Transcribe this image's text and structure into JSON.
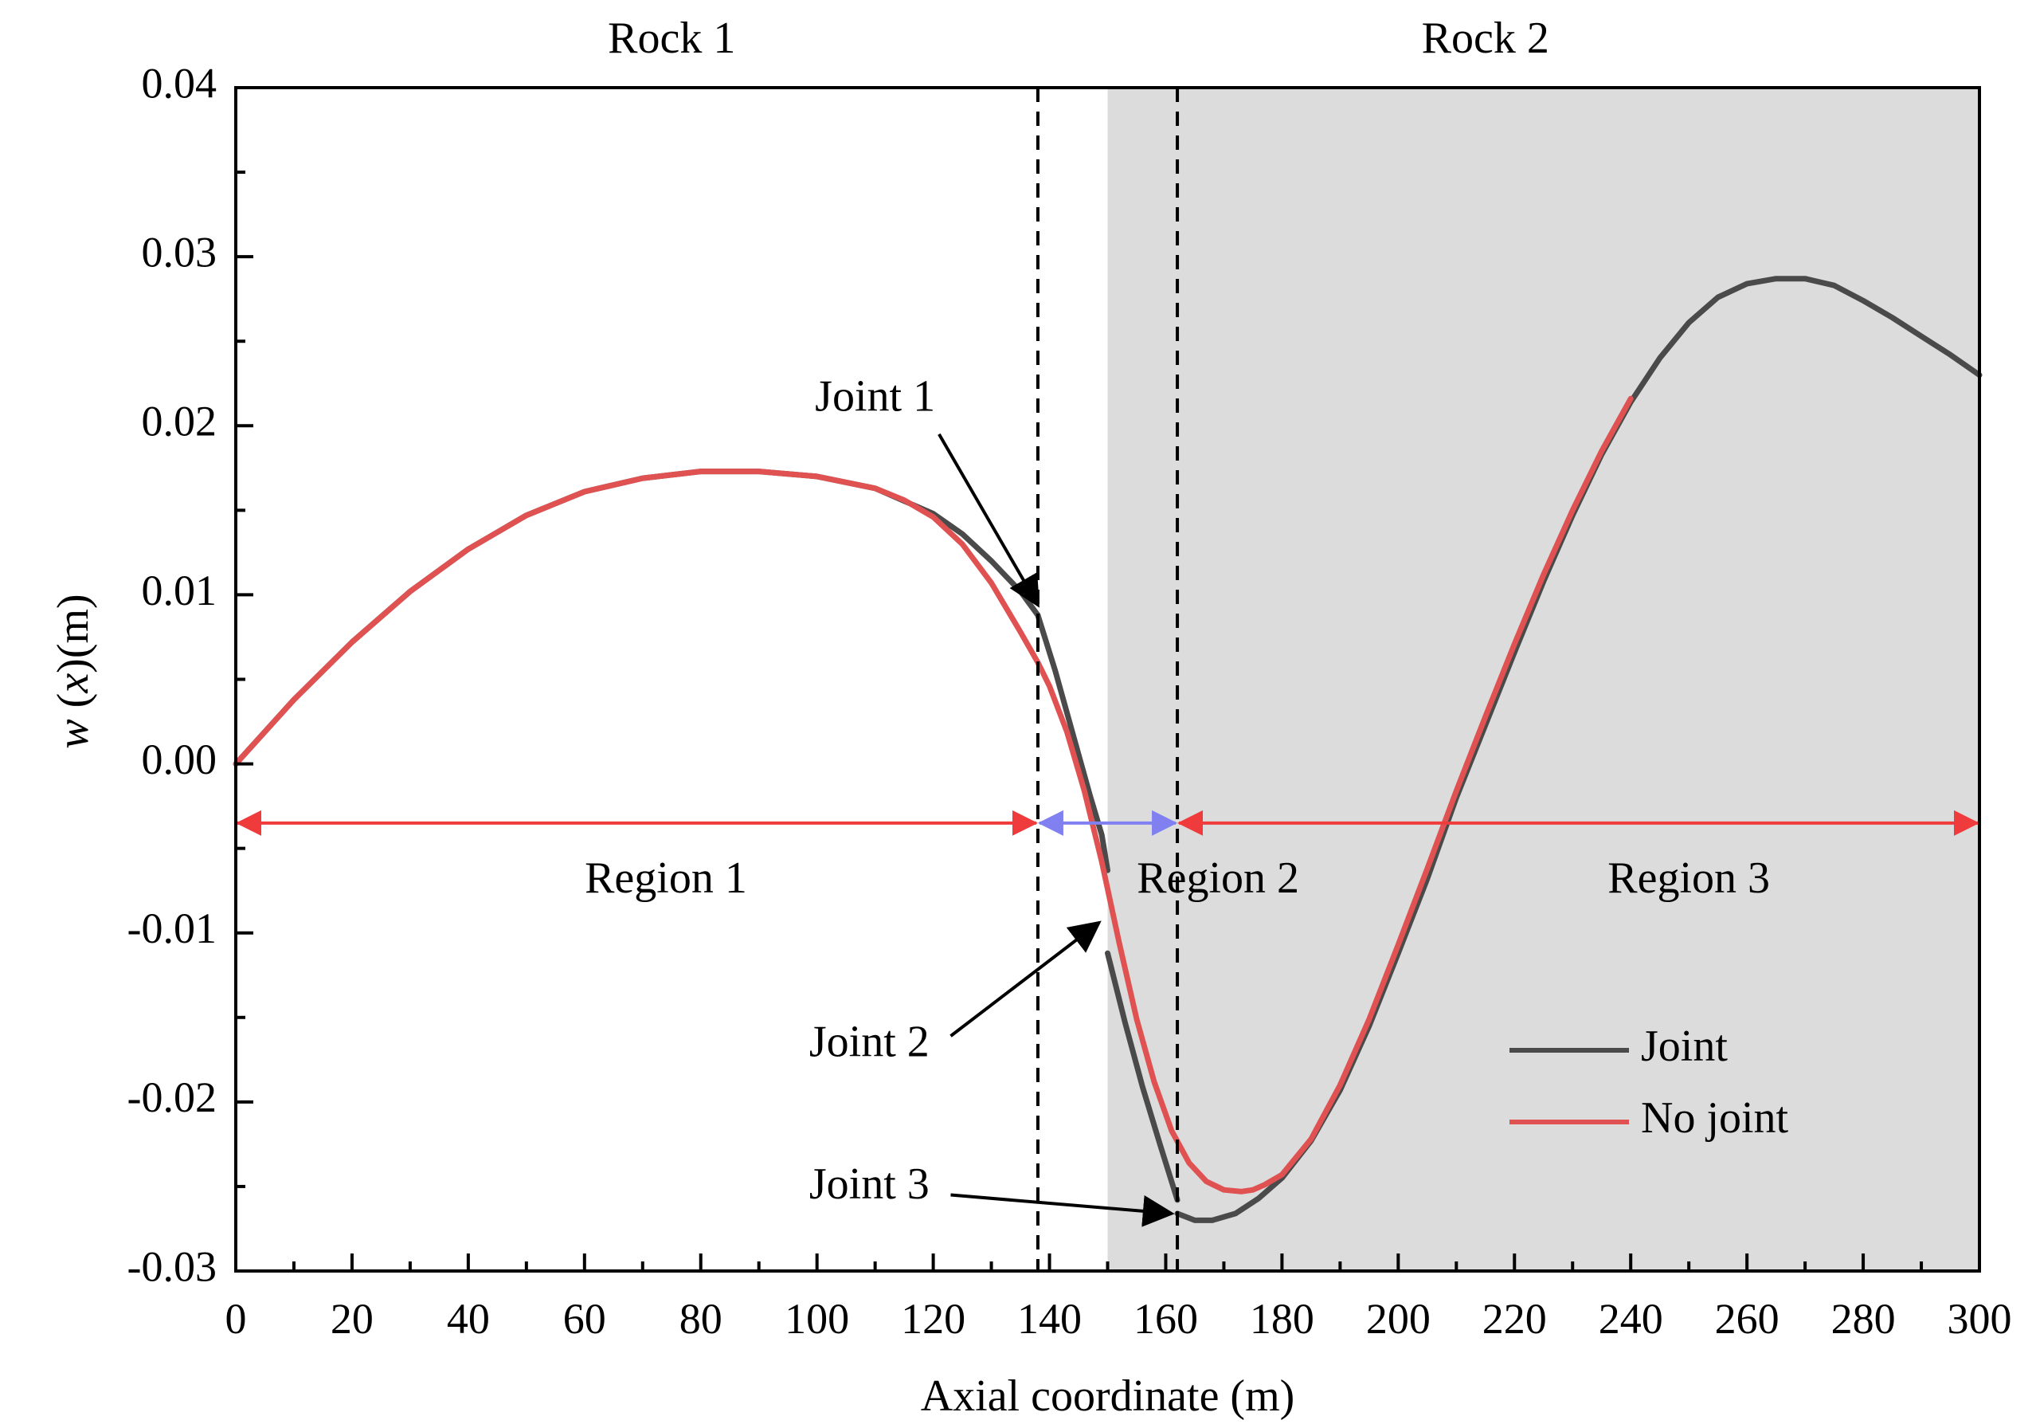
{
  "chart_data": {
    "type": "line",
    "title": "",
    "xlabel": "Axial coordinate (m)",
    "ylabel": "w (x)(m)",
    "ylabel_parts": {
      "w": "w",
      "open": " (",
      "x": "x",
      "close": ")(m)"
    },
    "xlim": [
      0,
      300
    ],
    "ylim": [
      -0.03,
      0.04
    ],
    "xticks": [
      0,
      20,
      40,
      60,
      80,
      100,
      120,
      140,
      160,
      180,
      200,
      220,
      240,
      260,
      280,
      300
    ],
    "xtick_labels": [
      "0",
      "20",
      "40",
      "60",
      "80",
      "100",
      "120",
      "140",
      "160",
      "180",
      "200",
      "220",
      "240",
      "260",
      "280",
      "300"
    ],
    "yticks": [
      -0.03,
      -0.02,
      -0.01,
      0.0,
      0.01,
      0.02,
      0.03,
      0.04
    ],
    "ytick_labels": [
      "-0.03",
      "-0.02",
      "-0.01",
      "0.00",
      "0.01",
      "0.02",
      "0.03",
      "0.04"
    ],
    "grid": false,
    "legend_position": "bottom-right",
    "shaded_region": {
      "x_from": 150,
      "x_to": 300,
      "color": "#dcdcdc"
    },
    "vertical_lines": [
      138,
      162
    ],
    "rock_labels": [
      {
        "text": "Rock 1",
        "x": 75
      },
      {
        "text": "Rock 2",
        "x": 215
      }
    ],
    "region_arrows": [
      {
        "x_from": 0,
        "x_to": 138,
        "y": -0.0035,
        "color": "#ef3b3b"
      },
      {
        "x_from": 138,
        "x_to": 162,
        "y": -0.0035,
        "color": "#8080f0"
      },
      {
        "x_from": 162,
        "x_to": 300,
        "y": -0.0035,
        "color": "#ef3b3b"
      }
    ],
    "region_labels": [
      {
        "text": "Region 1",
        "x": 74,
        "y": -0.007
      },
      {
        "text": "Region 2",
        "x": 169,
        "y": -0.007
      },
      {
        "text": "Region 3",
        "x": 250,
        "y": -0.007
      }
    ],
    "annotations": [
      {
        "text": "Joint 1",
        "text_x": 110,
        "text_y": 0.0215,
        "arrow_from": [
          121,
          0.0195
        ],
        "arrow_to": [
          138,
          0.0094
        ]
      },
      {
        "text": "Joint 2",
        "text_x": 109,
        "text_y": -0.0167,
        "arrow_from": [
          123,
          -0.0161
        ],
        "arrow_to": [
          148.5,
          -0.0094
        ]
      },
      {
        "text": "Joint 3",
        "text_x": 109,
        "text_y": -0.0251,
        "arrow_from": [
          123,
          -0.0255
        ],
        "arrow_to": [
          161,
          -0.0266
        ]
      }
    ],
    "series": [
      {
        "name": "Joint",
        "color": "#4a4a4a",
        "segments": [
          {
            "x": [
              0,
              10,
              20,
              30,
              40,
              50,
              60,
              70,
              80,
              86,
              90,
              100,
              110,
              120,
              125,
              130,
              135,
              138
            ],
            "y": [
              0.0,
              0.0038,
              0.0072,
              0.0102,
              0.0127,
              0.0147,
              0.0161,
              0.0169,
              0.0173,
              0.0173,
              0.0173,
              0.017,
              0.0163,
              0.0148,
              0.0136,
              0.012,
              0.0102,
              0.0088
            ]
          },
          {
            "x": [
              138,
              141,
              144,
              147,
              149,
              150
            ],
            "y": [
              0.0088,
              0.0055,
              0.0018,
              -0.0019,
              -0.0042,
              -0.0063
            ]
          },
          {
            "x": [
              150,
              153,
              156,
              159,
              162
            ],
            "y": [
              -0.0112,
              -0.0153,
              -0.0191,
              -0.0225,
              -0.0258
            ]
          },
          {
            "x": [
              162,
              165,
              168,
              172,
              176,
              180,
              185,
              190,
              195,
              200,
              205,
              210,
              215,
              220,
              225,
              230,
              235,
              240,
              245,
              250,
              255,
              260,
              265,
              270,
              275,
              280,
              285,
              290,
              295,
              300
            ],
            "y": [
              -0.0266,
              -0.027,
              -0.027,
              -0.0266,
              -0.0257,
              -0.0245,
              -0.0223,
              -0.0193,
              -0.0155,
              -0.0112,
              -0.0068,
              -0.002,
              0.0023,
              0.0066,
              0.0108,
              0.0147,
              0.0183,
              0.0214,
              0.024,
              0.0261,
              0.0276,
              0.0284,
              0.0287,
              0.0287,
              0.0283,
              0.0274,
              0.0264,
              0.0253,
              0.0242,
              0.023
            ]
          }
        ]
      },
      {
        "name": "No joint",
        "color": "#e05252",
        "segments": [
          {
            "x": [
              0,
              10,
              20,
              30,
              40,
              50,
              60,
              70,
              80,
              86,
              90,
              100,
              110,
              115,
              120,
              125,
              130,
              135,
              138,
              140,
              143,
              146,
              149,
              152,
              155,
              158,
              161,
              164,
              167,
              170,
              173,
              175,
              177,
              180,
              185,
              190,
              195,
              200,
              205,
              210,
              215,
              220,
              225,
              230,
              235,
              240
            ],
            "y": [
              0.0,
              0.0038,
              0.0072,
              0.0102,
              0.0127,
              0.0147,
              0.0161,
              0.0169,
              0.0173,
              0.0173,
              0.0173,
              0.017,
              0.0163,
              0.0156,
              0.0146,
              0.013,
              0.0107,
              0.0078,
              0.006,
              0.0046,
              0.0019,
              -0.0016,
              -0.0058,
              -0.0106,
              -0.0151,
              -0.0188,
              -0.0217,
              -0.0236,
              -0.0247,
              -0.0252,
              -0.0253,
              -0.0252,
              -0.0249,
              -0.0243,
              -0.0222,
              -0.019,
              -0.0151,
              -0.0107,
              -0.0062,
              -0.0016,
              0.0028,
              0.0071,
              0.0112,
              0.015,
              0.0185,
              0.0216
            ]
          }
        ]
      }
    ]
  }
}
